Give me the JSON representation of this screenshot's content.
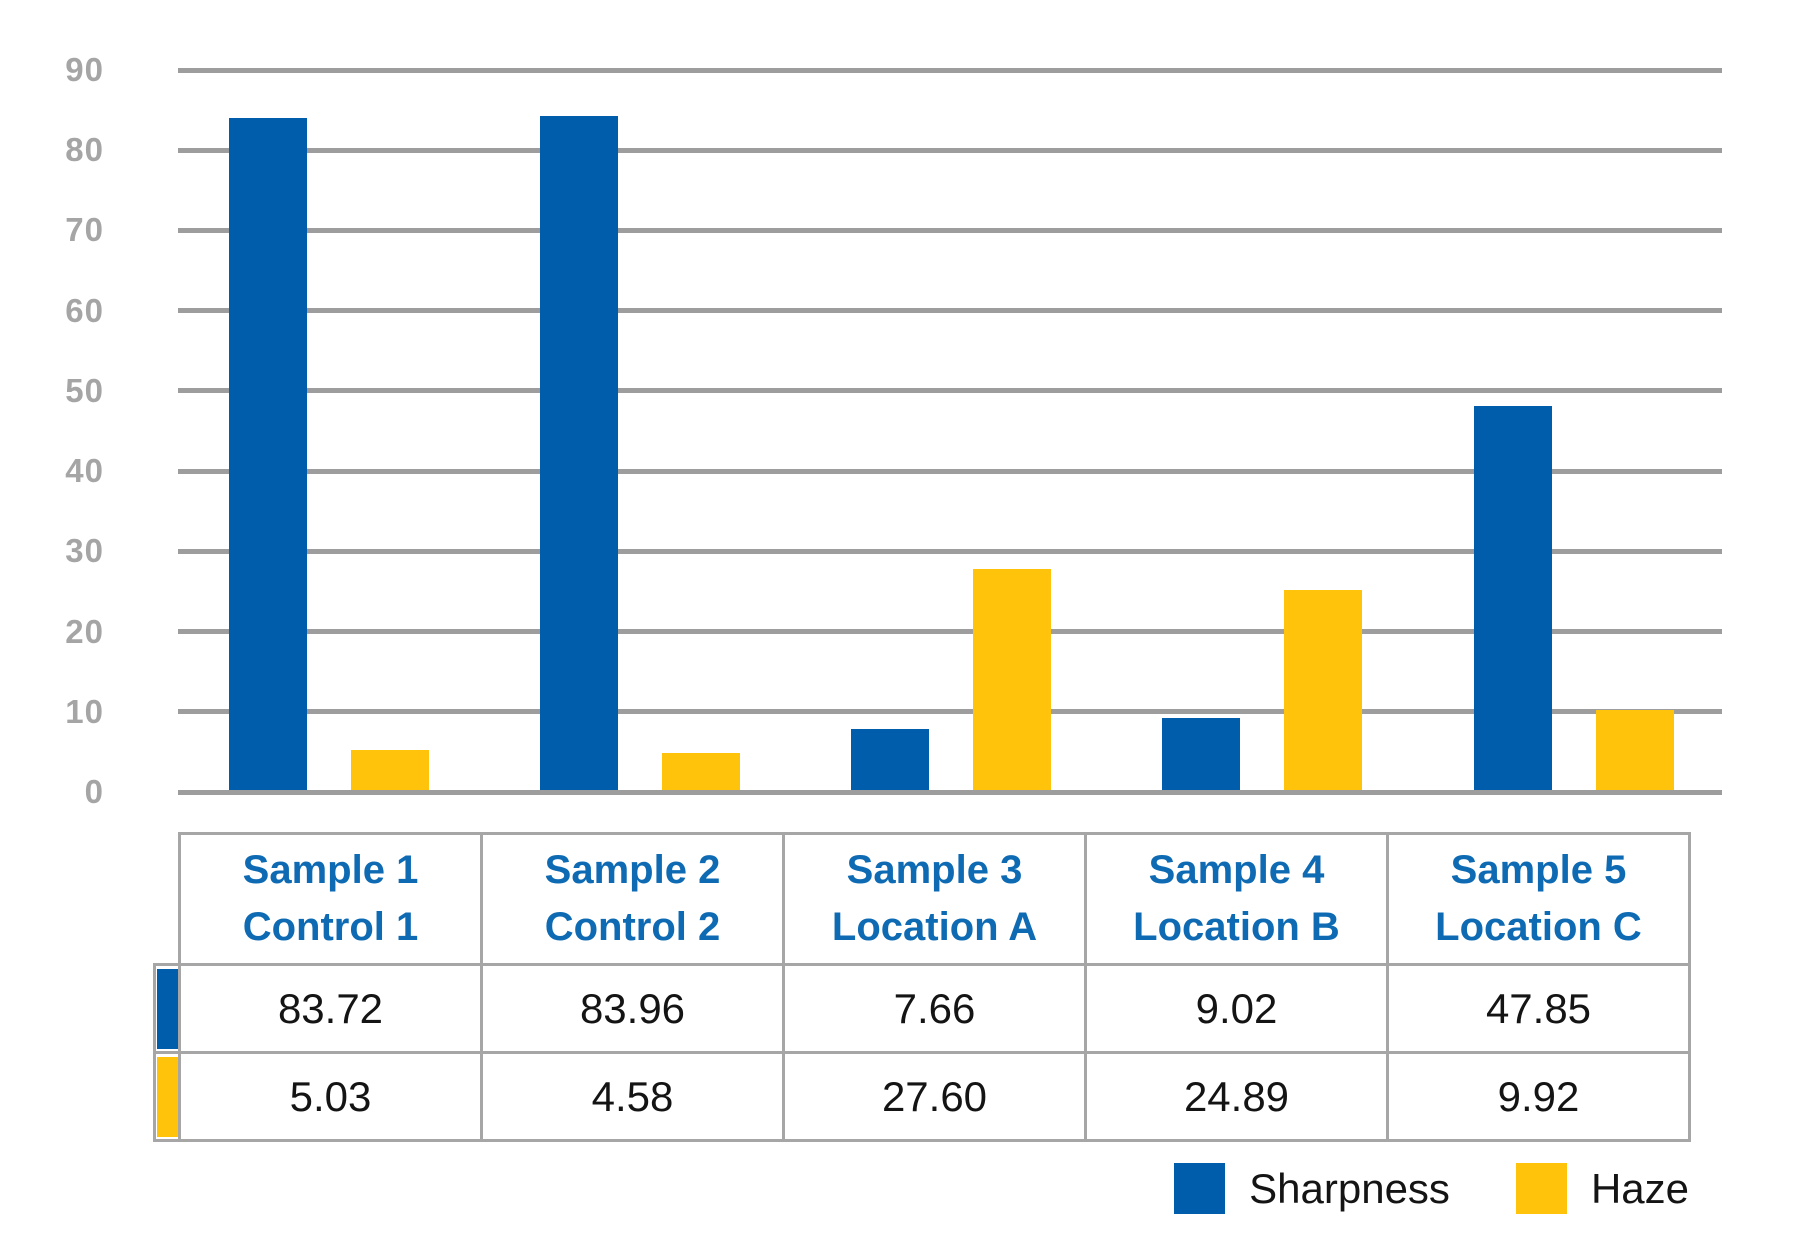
{
  "chart_data": {
    "type": "bar",
    "title": "",
    "xlabel": "",
    "ylabel": "",
    "ylim": [
      0,
      90
    ],
    "ytick_step": 10,
    "grid": "horizontal-gray-lines",
    "legend_position": "bottom-right",
    "categories": [
      {
        "title": "Sample 1",
        "subtitle": "Control 1"
      },
      {
        "title": "Sample 2",
        "subtitle": "Control 2"
      },
      {
        "title": "Sample 3",
        "subtitle": "Location A"
      },
      {
        "title": "Sample 4",
        "subtitle": "Location B"
      },
      {
        "title": "Sample 5",
        "subtitle": "Location C"
      }
    ],
    "series": [
      {
        "name": "Sharpness",
        "color": "#005DAB",
        "values": [
          "83.72",
          "83.96",
          "7.66",
          "9.02",
          "47.85"
        ]
      },
      {
        "name": "Haze",
        "color": "#FFC30B",
        "values": [
          "5.03",
          "4.58",
          "27.60",
          "24.89",
          "9.92"
        ]
      }
    ]
  },
  "colors": {
    "gridline": "#9D9D9D",
    "axis_label": "#A5A5A5",
    "table_border": "#A6A6A6",
    "header_text": "#0E6BB3",
    "value_text": "#141414"
  }
}
